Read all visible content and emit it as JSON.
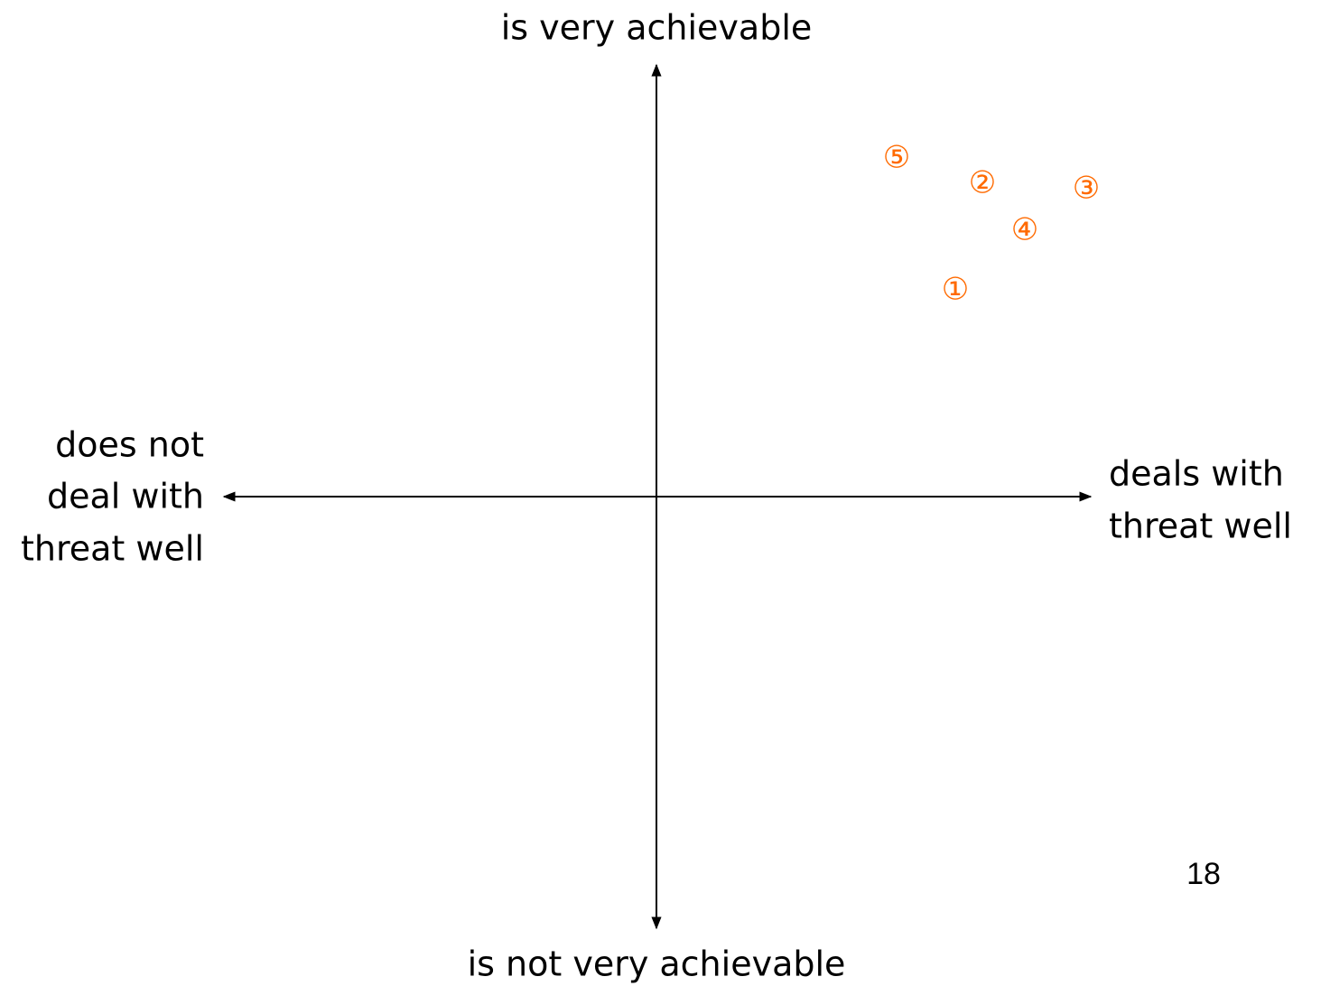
{
  "top_label": "is very achievable",
  "bottom_label": "is not very achievable",
  "left_label": [
    "does not",
    "deal with",
    "threat well"
  ],
  "right_label": [
    "deals with",
    "threat well"
  ],
  "markers": [
    "①",
    "②",
    "③",
    "④",
    "⑤"
  ],
  "page_number": "18"
}
